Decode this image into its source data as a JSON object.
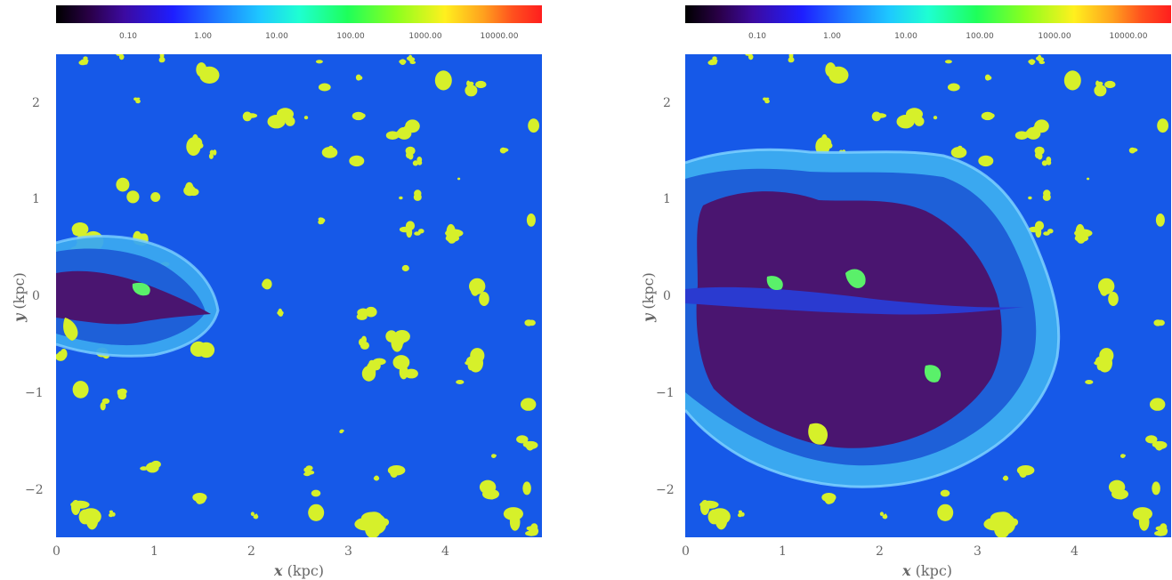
{
  "colorbar": {
    "tick_labels": [
      "0.10",
      "1.00",
      "10.00",
      "100.00",
      "1000.00",
      "10000.00"
    ]
  },
  "panels": [
    {
      "x_tick_labels": [
        "0",
        "1",
        "2",
        "3",
        "4"
      ],
      "y_tick_labels": [
        "2",
        "1",
        "0",
        "−1",
        "−2"
      ],
      "x_label_var": "x",
      "x_label_unit": "(kpc)",
      "y_label_var": "y",
      "y_label_unit": "(kpc)"
    },
    {
      "x_tick_labels": [
        "0",
        "1",
        "2",
        "3",
        "4"
      ],
      "y_tick_labels": [
        "2",
        "1",
        "0",
        "−1",
        "−2"
      ],
      "x_label_var": "x",
      "x_label_unit": "(kpc)",
      "y_label_var": "y",
      "y_label_unit": "(kpc)"
    }
  ],
  "colors": {
    "background_medium": "#1659e8",
    "clouds": "#d6f02a",
    "bubble_shell": "#3aa8f0",
    "bubble_interior": "#4a1570"
  }
}
